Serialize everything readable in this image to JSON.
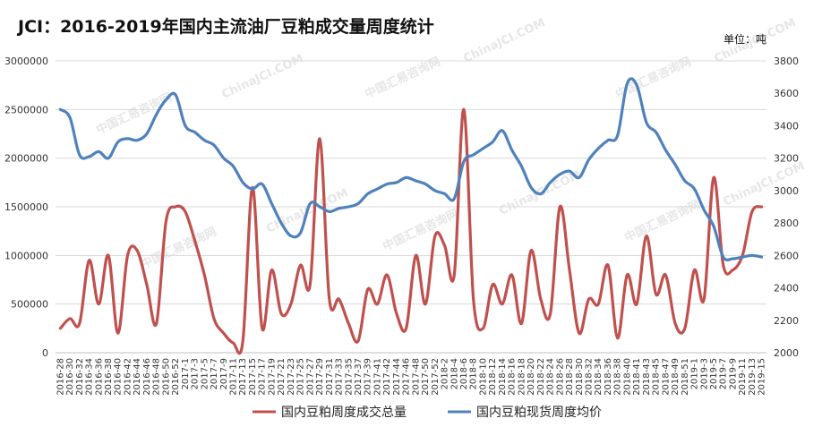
{
  "chart_data": {
    "type": "line",
    "title": "JCI：2016-2019年国内主流油厂豆粕成交量周度统计",
    "unit_label": "单位：吨",
    "watermark": [
      "中国汇易咨询网",
      "ChinaJCI.COM"
    ],
    "categories": [
      "2016-28",
      "2016-30",
      "2016-32",
      "2016-34",
      "2016-36",
      "2016-38",
      "2016-40",
      "2016-42",
      "2016-44",
      "2016-46",
      "2016-48",
      "2016-50",
      "2016-52",
      "2017-1",
      "2017-3",
      "2017-5",
      "2017-7",
      "2017-9",
      "2017-11",
      "2017-13",
      "2017-15",
      "2017-17",
      "2017-19",
      "2017-21",
      "2017-23",
      "2017-25",
      "2017-27",
      "2017-29",
      "2017-31",
      "2017-33",
      "2017-35",
      "2017-37",
      "2017-39",
      "2017-41",
      "2017-42",
      "2017-44",
      "2017-46",
      "2017-48",
      "2017-50",
      "2017-52",
      "2018-2",
      "2018-4",
      "2018-6",
      "2018-8",
      "2018-10",
      "2018-12",
      "2018-14",
      "2018-16",
      "2018-18",
      "2018-20",
      "2018-22",
      "2018-24",
      "2018-26",
      "2018-28",
      "2018-30",
      "2018-32",
      "2018-34",
      "2018-36",
      "2018-38",
      "2018-40",
      "2018-41",
      "2018-43",
      "2018-45",
      "2018-47",
      "2018-49",
      "2018-51",
      "2019-1",
      "2019-3",
      "2019-5",
      "2019-7",
      "2019-9",
      "2019-11",
      "2019-13",
      "2019-15"
    ],
    "y_left": {
      "min": 0,
      "max": 3000000,
      "step": 500000,
      "ticks": [
        "0",
        "500000",
        "1000000",
        "1500000",
        "2000000",
        "2500000",
        "3000000"
      ]
    },
    "y_right": {
      "min": 2000,
      "max": 3800,
      "step": 200,
      "ticks": [
        "2000",
        "2200",
        "2400",
        "2600",
        "2800",
        "3000",
        "3200",
        "3400",
        "3600",
        "3800"
      ]
    },
    "grid": "horizontal",
    "legend_position": "bottom",
    "series": [
      {
        "name": "国内豆粕周度成交总量",
        "axis": "left",
        "color": "#c0504d",
        "values": [
          250000,
          350000,
          300000,
          950000,
          500000,
          1000000,
          200000,
          1000000,
          1050000,
          700000,
          300000,
          1350000,
          1500000,
          1450000,
          1150000,
          800000,
          350000,
          200000,
          100000,
          120000,
          1700000,
          250000,
          850000,
          400000,
          500000,
          900000,
          700000,
          2200000,
          550000,
          550000,
          300000,
          120000,
          650000,
          500000,
          800000,
          400000,
          250000,
          1000000,
          500000,
          1200000,
          1100000,
          800000,
          2500000,
          550000,
          250000,
          700000,
          500000,
          800000,
          300000,
          1050000,
          550000,
          400000,
          1500000,
          850000,
          200000,
          550000,
          500000,
          900000,
          150000,
          800000,
          500000,
          1200000,
          600000,
          800000,
          300000,
          250000,
          850000,
          550000,
          1800000,
          900000,
          850000,
          1000000,
          1450000,
          1500000
        ]
      },
      {
        "name": "国内豆粕现货周度均价",
        "axis": "right",
        "color": "#4f81bd",
        "values": [
          3500,
          3450,
          3220,
          3210,
          3240,
          3200,
          3300,
          3320,
          3310,
          3350,
          3470,
          3560,
          3590,
          3400,
          3360,
          3310,
          3280,
          3200,
          3150,
          3050,
          3010,
          3040,
          2920,
          2800,
          2720,
          2740,
          2920,
          2900,
          2870,
          2890,
          2900,
          2920,
          2980,
          3010,
          3040,
          3050,
          3080,
          3060,
          3040,
          3000,
          2980,
          2950,
          3180,
          3220,
          3260,
          3300,
          3370,
          3250,
          3150,
          3020,
          2980,
          3050,
          3100,
          3120,
          3080,
          3190,
          3260,
          3310,
          3340,
          3660,
          3650,
          3420,
          3360,
          3250,
          3160,
          3060,
          3010,
          2880,
          2780,
          2590,
          2580,
          2590,
          2600,
          2590
        ]
      }
    ]
  }
}
